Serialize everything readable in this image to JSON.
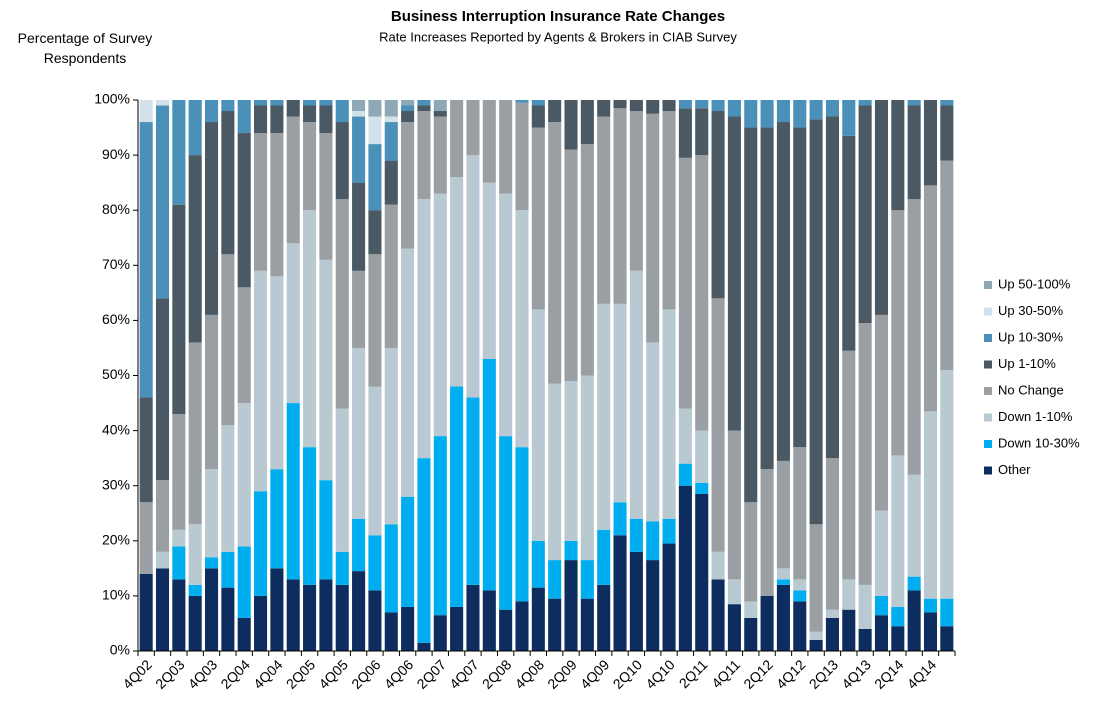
{
  "chart_data": {
    "type": "stacked_bar",
    "title": "Business Interruption Insurance Rate Changes",
    "subtitle": "Rate Increases Reported by Agents & Brokers in CIAB Survey",
    "y_label": "Percentage of Survey Respondents",
    "categories": [
      "4Q02",
      null,
      "2Q03",
      null,
      "4Q03",
      null,
      "2Q04",
      null,
      "4Q04",
      null,
      "2Q05",
      null,
      "4Q05",
      null,
      "2Q06",
      null,
      "4Q06",
      null,
      "2Q07",
      null,
      "4Q07",
      null,
      "2Q08",
      null,
      "4Q08",
      null,
      "2Q09",
      null,
      "4Q09",
      null,
      "2Q10",
      null,
      "4Q10",
      null,
      "2Q11",
      null,
      "4Q11",
      null,
      "2Q12",
      null,
      "4Q12",
      null,
      "2Q13",
      null,
      "4Q13",
      null,
      "2Q14",
      null,
      "4Q14",
      null
    ],
    "series": [
      {
        "name": "Other",
        "color": "#0d2d5e",
        "values": [
          14,
          15,
          13,
          10,
          15,
          11.5,
          6,
          10,
          15,
          13,
          12,
          13,
          12,
          14.5,
          11,
          7,
          8,
          1.5,
          6.5,
          8,
          12,
          11,
          7.5,
          9,
          11.5,
          9.5,
          16.5,
          9.5,
          12,
          21,
          18,
          16.5,
          19.5,
          30,
          28.5,
          13,
          8.5,
          6,
          10,
          12,
          9,
          2,
          6,
          7.5,
          4,
          6.5,
          4.5,
          11,
          7,
          4.5
        ]
      },
      {
        "name": "Down 10-30%",
        "color": "#00aeef",
        "values": [
          0,
          0,
          6,
          2,
          2,
          6.5,
          13,
          19,
          18,
          32,
          25,
          18,
          6,
          9.5,
          10,
          16,
          20,
          33.5,
          32.5,
          40,
          34,
          42,
          31.5,
          28,
          8.5,
          7,
          3.5,
          7,
          10,
          6,
          6,
          7,
          4.5,
          4,
          2,
          0,
          0,
          0,
          0,
          1,
          2,
          0,
          0,
          0,
          0,
          3.5,
          3.5,
          2.5,
          2.5,
          5
        ]
      },
      {
        "name": "Down 1-10%",
        "color": "#b8c9d1",
        "values": [
          0,
          3,
          3,
          11,
          16,
          23,
          26,
          40,
          35,
          29,
          43,
          40,
          26,
          31,
          27,
          32,
          45,
          47,
          44,
          38,
          44,
          32,
          44,
          43,
          42,
          32,
          29,
          33.5,
          41,
          36,
          45,
          32.5,
          38,
          10,
          9.5,
          5,
          4.5,
          3,
          0,
          2,
          2,
          1.5,
          1.5,
          5.5,
          8,
          15.5,
          27.5,
          18.5,
          34,
          41.5
        ]
      },
      {
        "name": "No Change",
        "color": "#9a9fa3",
        "values": [
          13,
          13,
          21,
          33,
          28,
          31,
          21,
          25,
          26,
          23,
          16,
          23,
          38,
          14,
          24,
          26,
          23,
          16,
          14,
          14,
          10,
          15,
          17,
          19.5,
          33,
          47.5,
          42,
          42,
          34,
          35.5,
          29,
          41.5,
          36,
          45.5,
          50,
          46,
          27,
          18,
          23,
          19.5,
          24,
          19.5,
          27.5,
          41.5,
          47.5,
          35.5,
          44.5,
          50,
          41,
          38
        ]
      },
      {
        "name": "Up 1-10%",
        "color": "#4a5964",
        "values": [
          19,
          33,
          38,
          34,
          35,
          26,
          28,
          5,
          5,
          3,
          3,
          5,
          14,
          16,
          8,
          8,
          2,
          1,
          1,
          0,
          0,
          0,
          0,
          0,
          4,
          4,
          9,
          8,
          3,
          1.5,
          2,
          2.5,
          2,
          9,
          8.5,
          34,
          57,
          68,
          62,
          61.5,
          58,
          73.5,
          62,
          39,
          39.5,
          39,
          20,
          17,
          15.5,
          10
        ]
      },
      {
        "name": "Up 10-30%",
        "color": "#4a90b8",
        "values": [
          50,
          35,
          19,
          10,
          4,
          2,
          6,
          1,
          1,
          0,
          1,
          1,
          4,
          12,
          12,
          7,
          1,
          1,
          0,
          0,
          0,
          0,
          0,
          0.5,
          1,
          0,
          0,
          0,
          0,
          0,
          0,
          0,
          0,
          1.5,
          1.5,
          2,
          3,
          5,
          5,
          4,
          5,
          3.5,
          3,
          6.5,
          1,
          0,
          0,
          1,
          0,
          1
        ]
      },
      {
        "name": "Up 30-50%",
        "color": "#d3e2ea",
        "values": [
          4,
          1,
          0,
          0,
          0,
          0,
          0,
          0,
          0,
          0,
          0,
          0,
          0,
          1,
          5,
          1,
          0,
          0,
          0,
          0,
          0,
          0,
          0,
          0,
          0,
          0,
          0,
          0,
          0,
          0,
          0,
          0,
          0,
          0,
          0,
          0,
          0,
          0,
          0,
          0,
          0,
          0,
          0,
          0,
          0,
          0,
          0,
          0,
          0,
          0
        ]
      },
      {
        "name": "Up 50-100%",
        "color": "#8fa8b5",
        "values": [
          0,
          0,
          0,
          0,
          0,
          0,
          0,
          0,
          0,
          0,
          0,
          0,
          0,
          2,
          3,
          3,
          1,
          0,
          2,
          0,
          0,
          0,
          0,
          0,
          0,
          0,
          0,
          0,
          0,
          0,
          0,
          0,
          0,
          0,
          0,
          0,
          0,
          0,
          0,
          0,
          0,
          0,
          0,
          0,
          0,
          0,
          0,
          0,
          0,
          0
        ]
      }
    ],
    "ylim": [
      0,
      100
    ],
    "yticks": [
      {
        "value": 0,
        "label": "0%"
      },
      {
        "value": 10,
        "label": "10%"
      },
      {
        "value": 20,
        "label": "20%"
      },
      {
        "value": 30,
        "label": "30%"
      },
      {
        "value": 40,
        "label": "40%"
      },
      {
        "value": 50,
        "label": "50%"
      },
      {
        "value": 60,
        "label": "60%"
      },
      {
        "value": 70,
        "label": "70%"
      },
      {
        "value": 80,
        "label": "80%"
      },
      {
        "value": 90,
        "label": "90%"
      },
      {
        "value": 100,
        "label": "100%"
      }
    ],
    "legend": "right",
    "grid": false
  }
}
